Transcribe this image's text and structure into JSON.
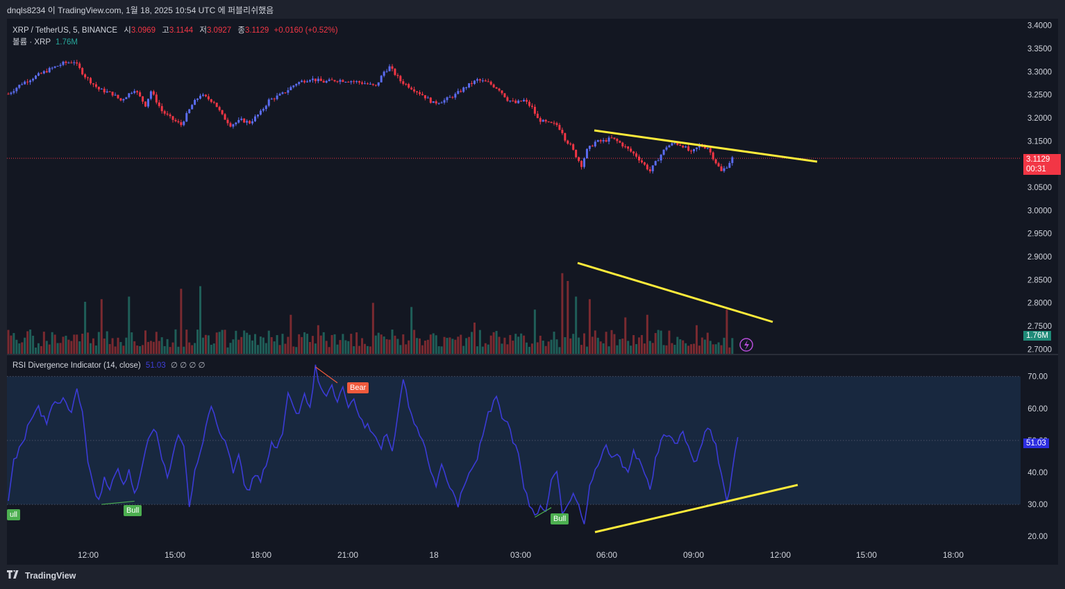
{
  "header": {
    "publish_line": "dnqls8234 이 TradingView.com, 1월 18, 2025 10:54 UTC 에 퍼블리쉬했음"
  },
  "legend": {
    "symbol": "XRP / TetherUS, 5, BINANCE",
    "o_label": "시",
    "o_value": "3.0969",
    "h_label": "고",
    "h_value": "3.1144",
    "l_label": "저",
    "l_value": "3.0927",
    "c_label": "종",
    "c_value": "3.1129",
    "change": "+0.0160 (+0.52%)",
    "volume_label": "볼륨 · XRP",
    "volume_value": "1.76M",
    "rsi_label": "RSI Divergence Indicator (14, close)",
    "rsi_value": "51.03",
    "rsi_nulls": "∅ ∅ ∅ ∅"
  },
  "footer": {
    "brand": "TradingView"
  },
  "colors": {
    "up": "#5b6cf0",
    "down": "#f23645",
    "rsi_line": "#3b3bd6",
    "trendline": "#ffeb3b",
    "bull": "#4caf50",
    "bear": "#f05a3c"
  },
  "chart_data": [
    {
      "type": "candlestick",
      "name": "XRP / TetherUS, 5, BINANCE",
      "x_ticks": [
        "12:00",
        "15:00",
        "18:00",
        "21:00",
        "18",
        "03:00",
        "06:00",
        "09:00",
        "12:00",
        "15:00",
        "18:00"
      ],
      "y_ticks": [
        "3.4000",
        "3.3500",
        "3.3000",
        "3.2500",
        "3.2000",
        "3.1500",
        "3.1000",
        "3.0500",
        "3.0000",
        "2.9500",
        "2.9000",
        "2.8500",
        "2.8000",
        "2.7500",
        "2.7000"
      ],
      "ylim": [
        2.69,
        3.41
      ],
      "last_price": "3.1129",
      "countdown": "00:31",
      "price_path": [
        [
          0,
          3.252
        ],
        [
          5,
          3.275
        ],
        [
          10,
          3.29
        ],
        [
          15,
          3.305
        ],
        [
          20,
          3.318
        ],
        [
          24,
          3.322
        ],
        [
          28,
          3.29
        ],
        [
          33,
          3.262
        ],
        [
          38,
          3.252
        ],
        [
          41,
          3.238
        ],
        [
          46,
          3.262
        ],
        [
          50,
          3.228
        ],
        [
          52,
          3.258
        ],
        [
          56,
          3.215
        ],
        [
          59,
          3.2
        ],
        [
          63,
          3.185
        ],
        [
          67,
          3.228
        ],
        [
          70,
          3.25
        ],
        [
          75,
          3.235
        ],
        [
          78,
          3.205
        ],
        [
          81,
          3.185
        ],
        [
          85,
          3.195
        ],
        [
          88,
          3.19
        ],
        [
          92,
          3.212
        ],
        [
          95,
          3.238
        ],
        [
          100,
          3.252
        ],
        [
          105,
          3.275
        ],
        [
          110,
          3.285
        ],
        [
          115,
          3.278
        ],
        [
          120,
          3.282
        ],
        [
          125,
          3.28
        ],
        [
          130,
          3.275
        ],
        [
          134,
          3.268
        ],
        [
          137,
          3.3
        ],
        [
          139,
          3.31
        ],
        [
          143,
          3.28
        ],
        [
          147,
          3.265
        ],
        [
          151,
          3.25
        ],
        [
          155,
          3.232
        ],
        [
          159,
          3.238
        ],
        [
          163,
          3.25
        ],
        [
          167,
          3.268
        ],
        [
          171,
          3.282
        ],
        [
          175,
          3.276
        ],
        [
          179,
          3.262
        ],
        [
          182,
          3.24
        ],
        [
          185,
          3.232
        ],
        [
          188,
          3.238
        ],
        [
          191,
          3.222
        ],
        [
          193,
          3.198
        ],
        [
          195,
          3.192
        ],
        [
          197,
          3.188
        ],
        [
          200,
          3.185
        ],
        [
          202,
          3.17
        ],
        [
          203,
          3.155
        ],
        [
          205,
          3.14
        ],
        [
          207,
          3.118
        ],
        [
          209,
          3.098
        ],
        [
          211,
          3.13
        ],
        [
          214,
          3.148
        ],
        [
          217,
          3.15
        ],
        [
          220,
          3.156
        ],
        [
          223,
          3.146
        ],
        [
          226,
          3.132
        ],
        [
          229,
          3.118
        ],
        [
          232,
          3.098
        ],
        [
          234,
          3.085
        ],
        [
          237,
          3.112
        ],
        [
          240,
          3.138
        ],
        [
          243,
          3.146
        ],
        [
          246,
          3.14
        ],
        [
          249,
          3.124
        ],
        [
          252,
          3.14
        ],
        [
          255,
          3.136
        ],
        [
          258,
          3.104
        ],
        [
          260,
          3.084
        ],
        [
          262,
          3.096
        ],
        [
          264,
          3.113
        ]
      ],
      "annotations": [
        "descending trendline above recent highs"
      ]
    },
    {
      "type": "bar",
      "name": "볼륨 · XRP",
      "last_value": "1.76M",
      "spikes": [
        [
          28,
          1.0
        ],
        [
          34,
          1.05
        ],
        [
          44,
          1.1
        ],
        [
          63,
          1.25
        ],
        [
          70,
          1.3
        ],
        [
          103,
          0.75
        ],
        [
          113,
          0.55
        ],
        [
          133,
          0.98
        ],
        [
          147,
          0.9
        ],
        [
          170,
          0.6
        ],
        [
          192,
          0.85
        ],
        [
          202,
          1.55
        ],
        [
          204,
          1.4
        ],
        [
          207,
          1.1
        ],
        [
          212,
          1.05
        ],
        [
          225,
          0.7
        ],
        [
          233,
          0.75
        ],
        [
          251,
          0.55
        ],
        [
          262,
          0.85
        ]
      ],
      "annotations": [
        "descending trendline over volume peaks"
      ]
    },
    {
      "type": "line",
      "name": "RSI Divergence Indicator (14, close)",
      "y_ticks": [
        "70.00",
        "60.00",
        "50.00",
        "40.00",
        "30.00",
        "20.00"
      ],
      "ylim": [
        17,
        76
      ],
      "bands": [
        30,
        70
      ],
      "last_value": "51.03",
      "values_path": [
        [
          0,
          30
        ],
        [
          2,
          44
        ],
        [
          5,
          49
        ],
        [
          8,
          56
        ],
        [
          11,
          60
        ],
        [
          14,
          56
        ],
        [
          17,
          62
        ],
        [
          20,
          63
        ],
        [
          23,
          58
        ],
        [
          25,
          66
        ],
        [
          27,
          58
        ],
        [
          29,
          44
        ],
        [
          31,
          36
        ],
        [
          33,
          31
        ],
        [
          35,
          38
        ],
        [
          37,
          35
        ],
        [
          40,
          42
        ],
        [
          42,
          36
        ],
        [
          44,
          41
        ],
        [
          46,
          33
        ],
        [
          48,
          38
        ],
        [
          50,
          48
        ],
        [
          52,
          52
        ],
        [
          54,
          53
        ],
        [
          56,
          44
        ],
        [
          58,
          38
        ],
        [
          60,
          46
        ],
        [
          62,
          52
        ],
        [
          64,
          48
        ],
        [
          66,
          30
        ],
        [
          68,
          40
        ],
        [
          70,
          46
        ],
        [
          72,
          55
        ],
        [
          74,
          61
        ],
        [
          76,
          56
        ],
        [
          78,
          50
        ],
        [
          80,
          48
        ],
        [
          82,
          40
        ],
        [
          84,
          46
        ],
        [
          86,
          36
        ],
        [
          88,
          34
        ],
        [
          90,
          40
        ],
        [
          92,
          38
        ],
        [
          94,
          42
        ],
        [
          96,
          50
        ],
        [
          98,
          47
        ],
        [
          100,
          53
        ],
        [
          102,
          65
        ],
        [
          104,
          61
        ],
        [
          106,
          58
        ],
        [
          108,
          64
        ],
        [
          110,
          60
        ],
        [
          112,
          73
        ],
        [
          114,
          66
        ],
        [
          116,
          64
        ],
        [
          118,
          67
        ],
        [
          120,
          62
        ],
        [
          122,
          66
        ],
        [
          124,
          60
        ],
        [
          126,
          63
        ],
        [
          128,
          58
        ],
        [
          130,
          55
        ],
        [
          132,
          54
        ],
        [
          134,
          50
        ],
        [
          136,
          48
        ],
        [
          138,
          52
        ],
        [
          140,
          47
        ],
        [
          142,
          58
        ],
        [
          144,
          70
        ],
        [
          146,
          60
        ],
        [
          148,
          56
        ],
        [
          150,
          52
        ],
        [
          152,
          48
        ],
        [
          154,
          40
        ],
        [
          156,
          36
        ],
        [
          158,
          42
        ],
        [
          160,
          38
        ],
        [
          162,
          34
        ],
        [
          164,
          30
        ],
        [
          166,
          36
        ],
        [
          168,
          40
        ],
        [
          170,
          42
        ],
        [
          172,
          48
        ],
        [
          174,
          56
        ],
        [
          176,
          60
        ],
        [
          178,
          63
        ],
        [
          180,
          58
        ],
        [
          182,
          56
        ],
        [
          184,
          50
        ],
        [
          186,
          46
        ],
        [
          188,
          36
        ],
        [
          190,
          30
        ],
        [
          192,
          26
        ],
        [
          194,
          30
        ],
        [
          196,
          28
        ],
        [
          198,
          38
        ],
        [
          200,
          40
        ],
        [
          202,
          28
        ],
        [
          204,
          30
        ],
        [
          206,
          34
        ],
        [
          208,
          30
        ],
        [
          210,
          24
        ],
        [
          212,
          36
        ],
        [
          214,
          40
        ],
        [
          216,
          44
        ],
        [
          218,
          48
        ],
        [
          220,
          44
        ],
        [
          222,
          46
        ],
        [
          224,
          42
        ],
        [
          226,
          40
        ],
        [
          228,
          46
        ],
        [
          230,
          44
        ],
        [
          232,
          40
        ],
        [
          234,
          34
        ],
        [
          236,
          44
        ],
        [
          238,
          50
        ],
        [
          240,
          52
        ],
        [
          242,
          51
        ],
        [
          244,
          49
        ],
        [
          246,
          53
        ],
        [
          248,
          48
        ],
        [
          250,
          43
        ],
        [
          252,
          46
        ],
        [
          254,
          52
        ],
        [
          256,
          54
        ],
        [
          258,
          48
        ],
        [
          260,
          40
        ],
        [
          262,
          31
        ],
        [
          264,
          40
        ],
        [
          266,
          51
        ]
      ],
      "divergence_labels": [
        {
          "text": "ull",
          "kind": "bull",
          "at": 0
        },
        {
          "text": "Bull",
          "kind": "bull",
          "at": 46
        },
        {
          "text": "Bear",
          "kind": "bear",
          "at": 120
        },
        {
          "text": "Bull",
          "kind": "bull",
          "at": 196
        }
      ],
      "annotations": [
        "ascending trendline along RSI lows"
      ]
    }
  ]
}
